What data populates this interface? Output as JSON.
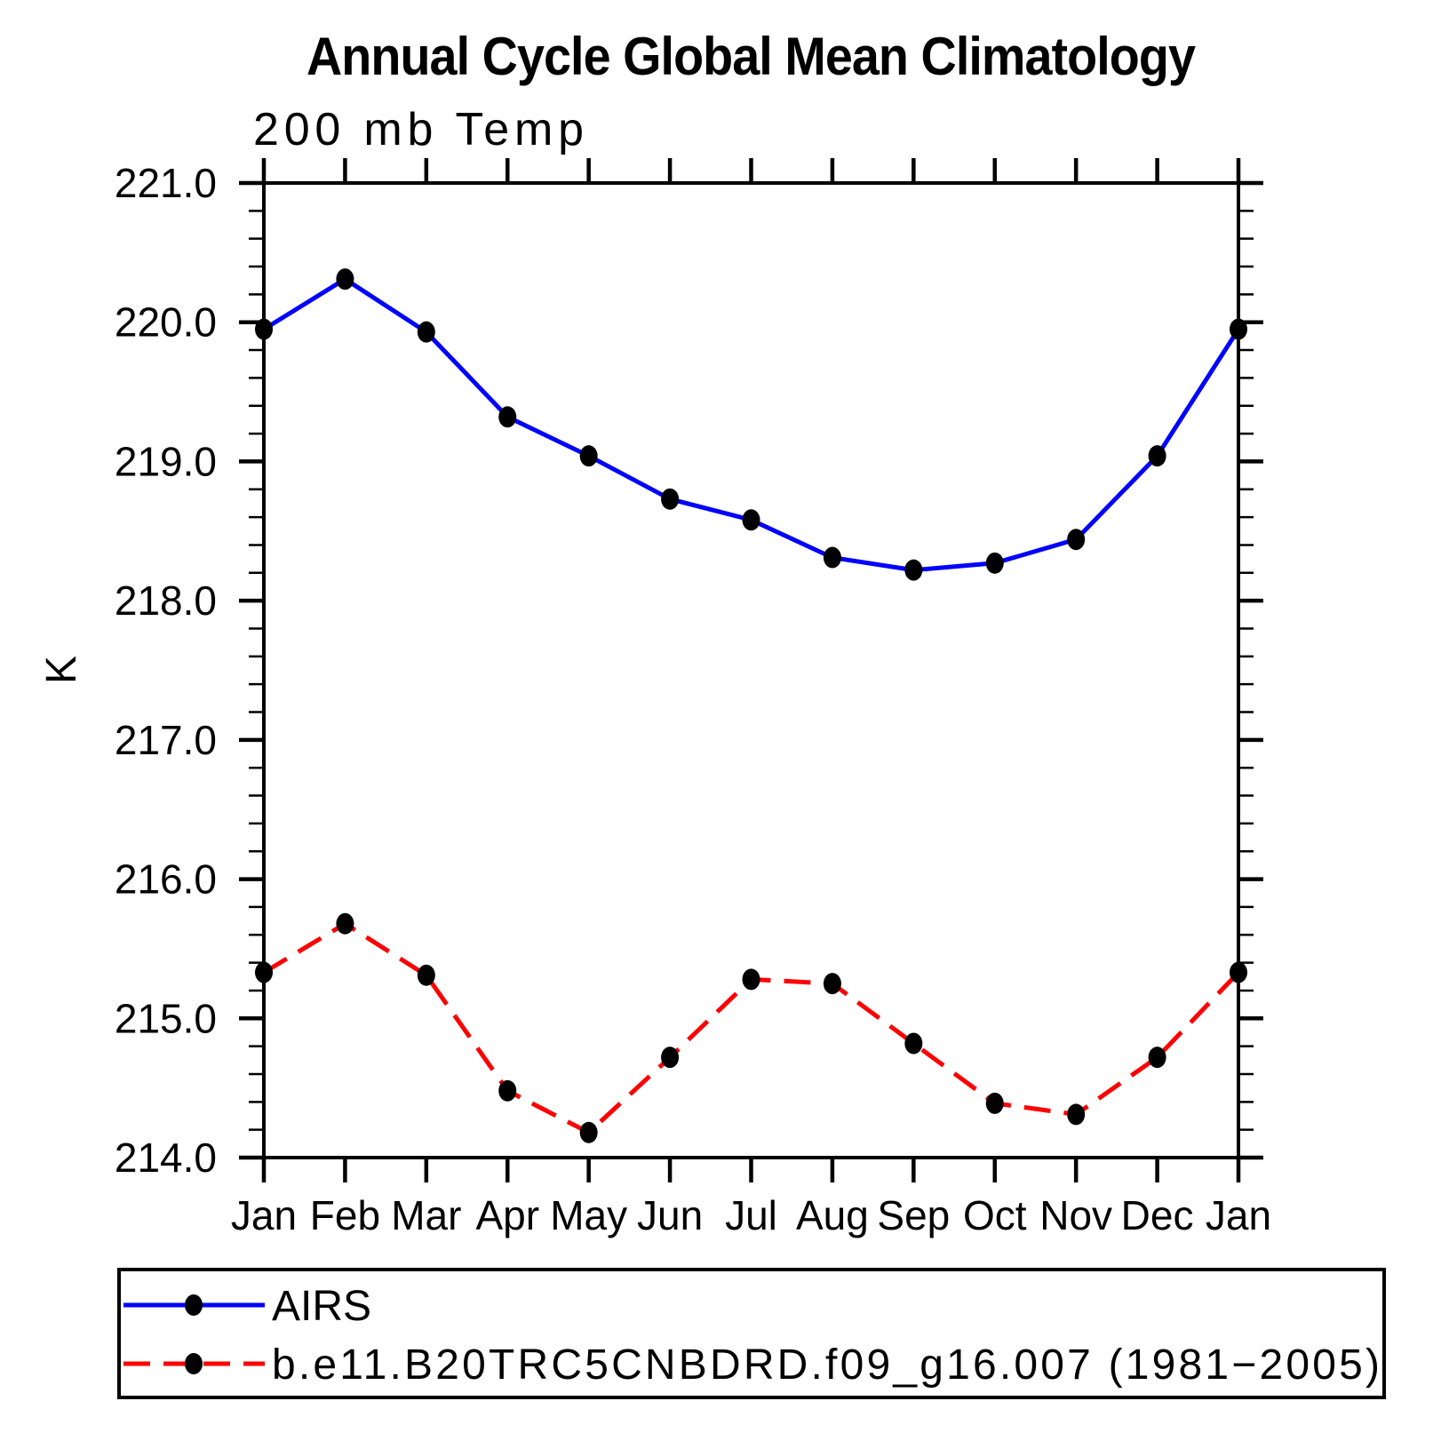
{
  "header": {
    "title": "Annual Cycle Global Mean Climatology",
    "subtitle": "200 mb Temp"
  },
  "axes": {
    "y_title": "K",
    "y_tick_labels": [
      "221.0",
      "220.0",
      "219.0",
      "218.0",
      "217.0",
      "216.0",
      "215.0",
      "214.0"
    ],
    "x_tick_labels": [
      "Jan",
      "Feb",
      "Mar",
      "Apr",
      "May",
      "Jun",
      "Jul",
      "Aug",
      "Sep",
      "Oct",
      "Nov",
      "Dec",
      "Jan"
    ]
  },
  "chart_data": {
    "type": "line",
    "title": "Annual Cycle Global Mean Climatology",
    "subtitle": "200 mb Temp",
    "xlabel": "",
    "ylabel": "K",
    "categories": [
      "Jan",
      "Feb",
      "Mar",
      "Apr",
      "May",
      "Jun",
      "Jul",
      "Aug",
      "Sep",
      "Oct",
      "Nov",
      "Dec",
      "Jan"
    ],
    "ylim": [
      214.0,
      221.0
    ],
    "ytick_major_step": 1.0,
    "ytick_minor_step": 0.2,
    "grid": false,
    "legend_position": "bottom-left-box",
    "frame_color": "#000000",
    "marker_color": "#000000",
    "series": [
      {
        "name": "AIRS",
        "color": "#0000ff",
        "line_style": "solid",
        "marker": "filled-circle",
        "values": [
          219.95,
          220.31,
          219.93,
          219.32,
          219.04,
          218.73,
          218.58,
          218.31,
          218.22,
          218.27,
          218.44,
          219.04,
          219.95
        ]
      },
      {
        "name": "b.e11.B20TRC5CNBDRD.f09_g16.007 (1981−2005)",
        "color": "#ff0000",
        "line_style": "dashed",
        "marker": "filled-circle",
        "values": [
          215.33,
          215.68,
          215.31,
          214.48,
          214.18,
          214.72,
          215.28,
          215.25,
          214.82,
          214.39,
          214.31,
          214.72,
          215.33
        ]
      }
    ]
  }
}
